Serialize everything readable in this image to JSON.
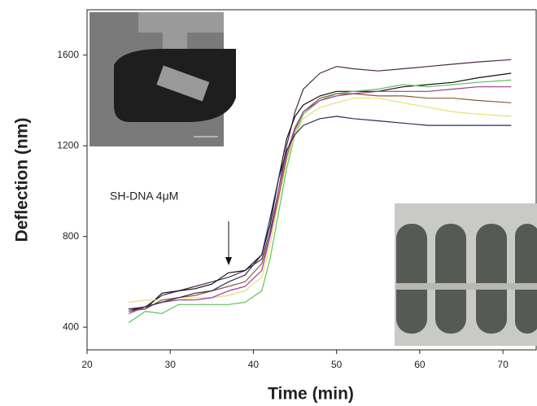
{
  "chart_data": {
    "type": "line",
    "x_label": "Time (min)",
    "y_label": "Deflection (nm)",
    "annotation": "SH-DNA 4μM",
    "x": [
      25,
      27,
      29,
      31,
      33,
      35,
      37,
      39,
      41,
      42,
      43,
      44,
      45,
      46,
      48,
      50,
      52,
      55,
      58,
      61,
      64,
      67,
      71
    ],
    "series": [
      {
        "color": "#4a2a4a",
        "values": [
          470,
          490,
          540,
          560,
          580,
          600,
          620,
          650,
          700,
          820,
          1000,
          1200,
          1350,
          1450,
          1520,
          1550,
          1540,
          1530,
          1540,
          1550,
          1560,
          1570,
          1580
        ]
      },
      {
        "color": "#111111",
        "values": [
          480,
          480,
          550,
          560,
          570,
          590,
          640,
          650,
          720,
          850,
          1050,
          1230,
          1330,
          1380,
          1420,
          1440,
          1440,
          1440,
          1460,
          1470,
          1480,
          1500,
          1520
        ]
      },
      {
        "color": "#5cc45c",
        "values": [
          420,
          470,
          460,
          500,
          500,
          500,
          500,
          510,
          560,
          700,
          900,
          1100,
          1250,
          1340,
          1400,
          1430,
          1440,
          1450,
          1470,
          1460,
          1470,
          1480,
          1490
        ]
      },
      {
        "color": "#e8e070",
        "values": [
          510,
          520,
          520,
          520,
          530,
          530,
          540,
          560,
          620,
          760,
          950,
          1130,
          1250,
          1320,
          1370,
          1390,
          1410,
          1410,
          1390,
          1370,
          1350,
          1340,
          1330
        ]
      },
      {
        "color": "#8a5a3a",
        "values": [
          470,
          480,
          520,
          530,
          540,
          560,
          580,
          600,
          680,
          800,
          970,
          1150,
          1270,
          1350,
          1410,
          1430,
          1430,
          1420,
          1420,
          1410,
          1410,
          1400,
          1390
        ]
      },
      {
        "color": "#9a3a9a",
        "values": [
          460,
          490,
          510,
          520,
          520,
          530,
          560,
          580,
          650,
          800,
          1000,
          1170,
          1280,
          1350,
          1400,
          1420,
          1430,
          1440,
          1440,
          1440,
          1450,
          1460,
          1460
        ]
      },
      {
        "color": "#2a2a5a",
        "values": [
          480,
          490,
          510,
          530,
          550,
          560,
          600,
          630,
          720,
          880,
          1050,
          1180,
          1250,
          1290,
          1320,
          1330,
          1320,
          1310,
          1300,
          1290,
          1290,
          1290,
          1290
        ]
      }
    ],
    "xlim": [
      20,
      74
    ],
    "xticks": [
      20,
      30,
      40,
      50,
      60,
      70
    ],
    "ylim": [
      300,
      1800
    ],
    "yticks": [
      400,
      800,
      1200,
      1600
    ],
    "grid": false
  }
}
